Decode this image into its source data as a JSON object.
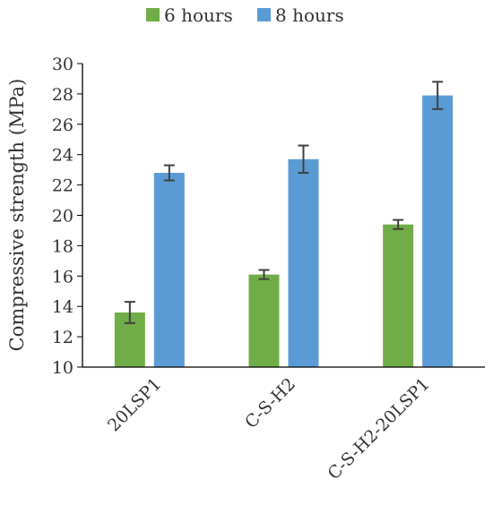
{
  "chart_data": {
    "type": "bar",
    "title": "",
    "xlabel": "",
    "ylabel": "Compressive strength (MPa)",
    "ylim": [
      10,
      30
    ],
    "yticks": [
      10,
      12,
      14,
      16,
      18,
      20,
      22,
      24,
      26,
      28,
      30
    ],
    "categories": [
      "20LSP1",
      "C-S-H2",
      "C-S-H2-20LSP1"
    ],
    "series": [
      {
        "name": "6 hours",
        "values": [
          13.6,
          16.1,
          19.4
        ],
        "errors": [
          0.7,
          0.3,
          0.3
        ]
      },
      {
        "name": "8 hours",
        "values": [
          22.8,
          23.7,
          27.9
        ],
        "errors": [
          0.5,
          0.9,
          0.9
        ]
      }
    ],
    "legend_position": "top",
    "grid": false,
    "error_bars": true
  },
  "colors": {
    "series": [
      "#70ad47",
      "#5b9bd5"
    ],
    "axis": "#000000",
    "error_bar": "#404040"
  }
}
